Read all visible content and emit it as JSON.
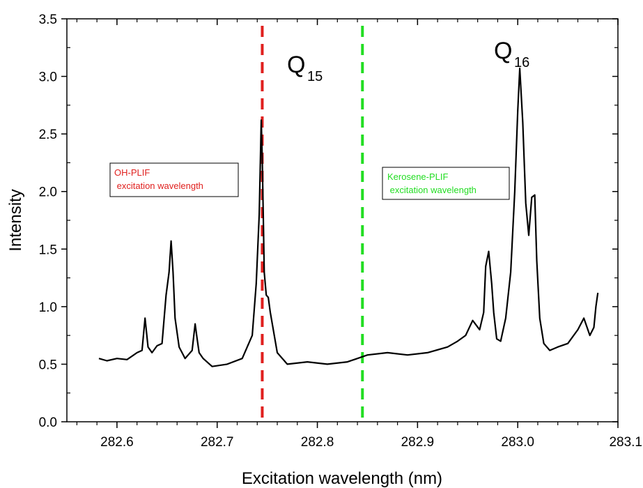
{
  "chart_data": {
    "type": "line",
    "xlabel": "Excitation wavelength (nm)",
    "ylabel": "Intensity",
    "xlim": [
      282.55,
      283.1
    ],
    "ylim": [
      0.0,
      3.5
    ],
    "xticks": [
      "282.6",
      "282.7",
      "282.8",
      "282.9",
      "283.0",
      "283.1"
    ],
    "yticks": [
      "0.0",
      "0.5",
      "1.0",
      "1.5",
      "2.0",
      "2.5",
      "3.0",
      "3.5"
    ],
    "xtick_values": [
      282.6,
      282.7,
      282.8,
      282.9,
      283.0,
      283.1
    ],
    "ytick_values": [
      0.0,
      0.5,
      1.0,
      1.5,
      2.0,
      2.5,
      3.0,
      3.5
    ],
    "grid": false,
    "series": [
      {
        "color": "#000000",
        "x": [
          282.582,
          282.59,
          282.6,
          282.61,
          282.62,
          282.625,
          282.628,
          282.631,
          282.635,
          282.64,
          282.645,
          282.649,
          282.652,
          282.654,
          282.656,
          282.658,
          282.662,
          282.668,
          282.675,
          282.678,
          282.68,
          282.682,
          282.686,
          282.695,
          282.71,
          282.725,
          282.735,
          282.739,
          282.742,
          282.744,
          282.745,
          282.746,
          282.747,
          282.749,
          282.751,
          282.753,
          282.76,
          282.77,
          282.79,
          282.81,
          282.83,
          282.85,
          282.87,
          282.89,
          282.91,
          282.93,
          282.94,
          282.948,
          282.955,
          282.962,
          282.966,
          282.968,
          282.971,
          282.974,
          282.976,
          282.979,
          282.983,
          282.988,
          282.993,
          282.997,
          283.0,
          283.002,
          283.005,
          283.008,
          283.011,
          283.014,
          283.017,
          283.019,
          283.022,
          283.026,
          283.032,
          283.04,
          283.05,
          283.06,
          283.066,
          283.072,
          283.076,
          283.078,
          283.08
        ],
        "y": [
          0.55,
          0.53,
          0.55,
          0.54,
          0.6,
          0.62,
          0.9,
          0.65,
          0.6,
          0.66,
          0.68,
          1.1,
          1.3,
          1.57,
          1.3,
          0.9,
          0.65,
          0.55,
          0.62,
          0.85,
          0.72,
          0.6,
          0.55,
          0.48,
          0.5,
          0.55,
          0.75,
          1.2,
          1.8,
          2.62,
          2.3,
          1.8,
          1.3,
          1.1,
          1.08,
          0.95,
          0.6,
          0.5,
          0.52,
          0.5,
          0.52,
          0.58,
          0.6,
          0.58,
          0.6,
          0.65,
          0.7,
          0.75,
          0.88,
          0.8,
          0.95,
          1.35,
          1.48,
          1.2,
          0.95,
          0.72,
          0.7,
          0.9,
          1.3,
          2.0,
          2.7,
          3.07,
          2.6,
          1.9,
          1.62,
          1.95,
          1.97,
          1.4,
          0.9,
          0.68,
          0.62,
          0.65,
          0.68,
          0.8,
          0.9,
          0.75,
          0.82,
          1.0,
          1.12
        ]
      }
    ],
    "vlines": [
      {
        "x": 282.745,
        "color": "#e0201e",
        "style": "dashed"
      },
      {
        "x": 282.845,
        "color": "#22dd22",
        "style": "dashed"
      }
    ],
    "annotations": {
      "q15_main": "Q",
      "q15_sub": "15",
      "q16_main": "Q",
      "q16_sub": "16",
      "oh_box": [
        "OH-PLIF",
        " excitation wavelength"
      ],
      "kero_box": [
        "Kerosene-PLIF",
        " excitation wavelength"
      ]
    },
    "colors": {
      "oh_text": "#e0201e",
      "kero_text": "#22dd22",
      "line": "#000000"
    }
  }
}
